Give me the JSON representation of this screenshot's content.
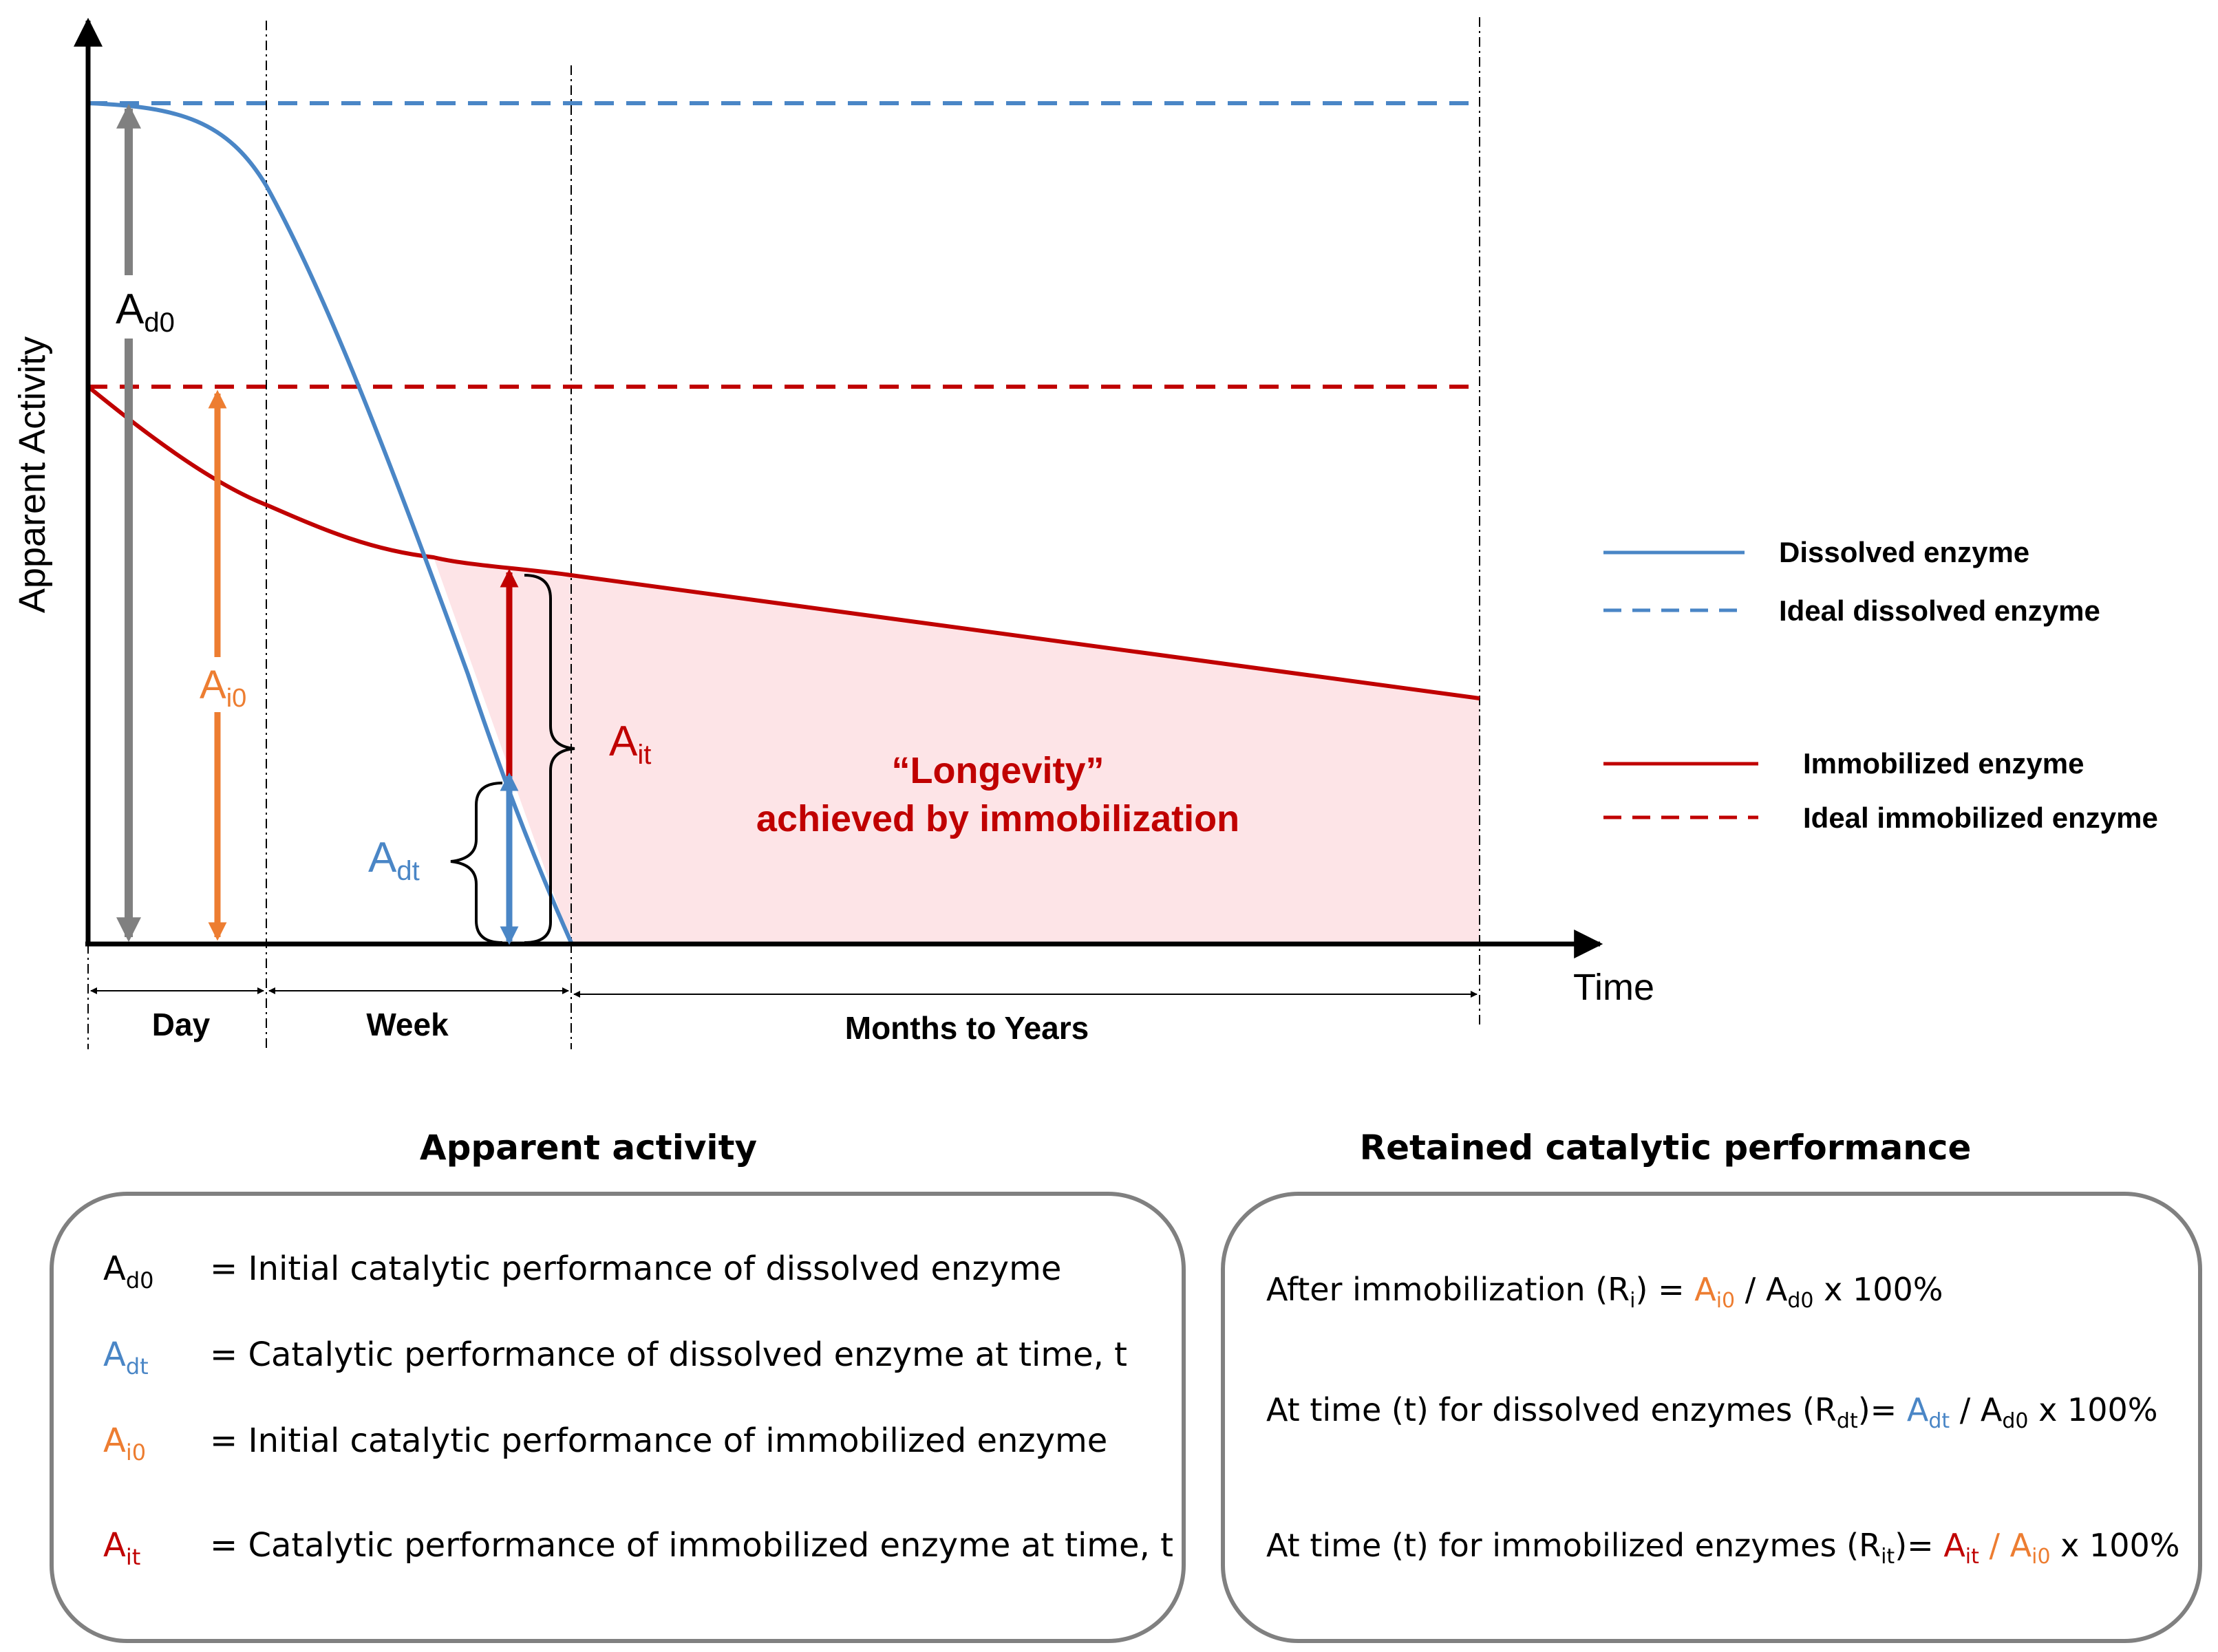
{
  "colors": {
    "blue": "#4a86c6",
    "red": "#c00000",
    "orange": "#ed7d31",
    "gray": "#808080",
    "pink_fill": "#fde4e7",
    "black": "#000000"
  },
  "axes": {
    "y_label": "Apparent Activity",
    "x_label": "Time"
  },
  "periods": {
    "day": "Day",
    "week": "Week",
    "months": "Months to Years"
  },
  "annotations": {
    "ad0": {
      "base": "A",
      "sub": "d0"
    },
    "ai0": {
      "base": "A",
      "sub": "i0"
    },
    "ait": {
      "base": "A",
      "sub": "it"
    },
    "adt": {
      "base": "A",
      "sub": "dt"
    },
    "longevity_line1": "“Longevity”",
    "longevity_line2": "achieved by immobilization"
  },
  "legend": {
    "dissolved": "Dissolved enzyme",
    "ideal_dissolved": "Ideal dissolved enzyme",
    "immobilized": "Immobilized enzyme",
    "ideal_immobilized": "Ideal immobilized enzyme"
  },
  "apparent_box": {
    "title": "Apparent activity",
    "rows": [
      {
        "sym": "A",
        "sub": "d0",
        "text": "= Initial catalytic performance of dissolved enzyme"
      },
      {
        "sym": "A",
        "sub": "dt",
        "text": "= Catalytic performance of dissolved enzyme at time, t"
      },
      {
        "sym": "A",
        "sub": "i0",
        "text": "= Initial catalytic performance of immobilized enzyme"
      },
      {
        "sym": "A",
        "sub": "it",
        "text": "= Catalytic performance of immobilized enzyme at time, t"
      }
    ]
  },
  "retained_box": {
    "title": "Retained catalytic performance",
    "row1": {
      "prefix": "After immobilization (R",
      "sub": "i",
      "mid": ") = ",
      "num": "A",
      "num_sub": "i0",
      "slash": " / ",
      "den": "A",
      "den_sub": "d0",
      "suffix": " x 100%"
    },
    "row2": {
      "prefix": "At time (t) for dissolved enzymes (R",
      "sub": "dt",
      "mid": ")= ",
      "num": "A",
      "num_sub": "dt",
      "slash": " / ",
      "den": "A",
      "den_sub": "d0",
      "suffix": " x 100%"
    },
    "row3": {
      "prefix": "At time (t) for immobilized enzymes (R",
      "sub": "it",
      "mid": ")= ",
      "num": "A",
      "num_sub": "it",
      "slash": " / ",
      "den": "A",
      "den_sub": "i0",
      "suffix": " x 100%"
    }
  }
}
